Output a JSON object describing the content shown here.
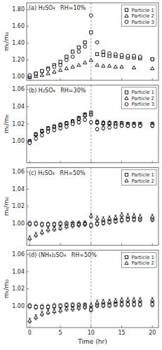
{
  "chart_data": [
    {
      "type": "scatter",
      "title": "(a) H₂SO₄   RH=10%",
      "ylabel": "mₜ/m₀",
      "xlim": [
        -0.5,
        21
      ],
      "xticks": [
        0,
        5,
        10,
        15,
        20
      ],
      "ylim": [
        0.96,
        1.88
      ],
      "yticks": [
        {
          "value": 1.0,
          "label": "1.00"
        },
        {
          "value": 1.2,
          "label": "1.20"
        },
        {
          "value": 1.4,
          "label": "1.40"
        },
        {
          "value": 1.6,
          "label": "1.60"
        },
        {
          "value": 1.8,
          "label": "1.80"
        }
      ],
      "tick_labels": "y",
      "grid": false,
      "legend": "upper right",
      "vline_x": 10.0,
      "series": [
        {
          "name": "Particle 1",
          "marker": "square",
          "color": "black",
          "x": [
            0.0,
            1.0,
            2.0,
            3.0,
            4.0,
            5.0,
            6.0,
            7.0,
            8.0,
            9.0,
            10.0,
            11.0,
            12.0,
            13.0,
            14.0,
            15.0,
            16.0,
            17.0,
            18.0,
            20.0
          ],
          "values": [
            1.0,
            1.04,
            1.07,
            1.1,
            1.14,
            1.18,
            1.24,
            1.3,
            1.35,
            1.41,
            1.53,
            1.27,
            1.26,
            1.25,
            1.25,
            1.24,
            1.23,
            1.23,
            1.22,
            1.21
          ]
        },
        {
          "name": "Particle 2",
          "marker": "triangle",
          "color": "black",
          "x": [
            0.0,
            1.0,
            2.0,
            3.0,
            4.0,
            5.0,
            6.0,
            7.0,
            8.0,
            9.0,
            10.0,
            11.0,
            12.0,
            13.0,
            14.0,
            15.0,
            17.0,
            20.0
          ],
          "values": [
            1.0,
            1.01,
            1.02,
            1.04,
            1.06,
            1.08,
            1.1,
            1.12,
            1.14,
            1.17,
            1.2,
            1.14,
            1.13,
            1.13,
            1.12,
            1.12,
            1.11,
            1.1
          ]
        },
        {
          "name": "Particle 3",
          "marker": "circle",
          "color": "black",
          "x": [
            0.0,
            1.0,
            2.0,
            3.0,
            4.0,
            5.0,
            6.0,
            7.0,
            8.0,
            9.0,
            10.0,
            11.0,
            12.0,
            13.0,
            14.0,
            15.0,
            16.0,
            17.0,
            18.0,
            20.0
          ],
          "values": [
            1.02,
            1.04,
            1.07,
            1.09,
            1.12,
            1.14,
            1.2,
            1.24,
            1.3,
            1.36,
            1.73,
            1.41,
            1.3,
            1.28,
            1.27,
            1.26,
            1.25,
            1.25,
            1.24,
            1.21
          ]
        }
      ]
    },
    {
      "type": "scatter",
      "title": "(b) H₂SO₄   RH=30%",
      "ylabel": "mₜ/m₀",
      "xlim": [
        -0.5,
        21
      ],
      "xticks": [
        0,
        5,
        10,
        15,
        20
      ],
      "ylim": [
        0.975,
        1.065
      ],
      "yticks": [
        {
          "value": 1.0,
          "label": "1.00"
        },
        1.02,
        1.04,
        1.06
      ],
      "tick_labels": "y",
      "grid": false,
      "legend": "upper right",
      "vline_x": 10.0,
      "series": [
        {
          "name": "Particle 1",
          "marker": "square",
          "color": "black",
          "x": [
            0.0,
            1.0,
            2.0,
            3.0,
            4.0,
            5.0,
            6.0,
            7.0,
            8.0,
            9.0,
            10.0,
            11.0,
            12.0,
            13.0,
            14.0,
            15.0,
            16.0,
            17.0,
            18.0,
            20.0
          ],
          "values": [
            1.0,
            1.008,
            1.012,
            1.015,
            1.017,
            1.019,
            1.021,
            1.023,
            1.027,
            1.031,
            1.033,
            1.022,
            1.021,
            1.021,
            1.021,
            1.021,
            1.02,
            1.02,
            1.02,
            1.02
          ],
          "yerr": [
            0.002,
            0.002,
            0.002,
            0.002,
            0.002,
            0.002,
            0.002,
            0.002,
            0.002,
            0.002,
            0.002,
            0.002,
            0.002,
            0.002,
            0.002,
            0.002,
            0.002,
            0.002,
            0.002,
            0.002
          ]
        },
        {
          "name": "Particle 2",
          "marker": "triangle",
          "color": "black",
          "x": [
            0.0,
            1.0,
            2.0,
            3.0,
            4.0,
            5.0,
            6.0,
            7.0,
            8.0,
            9.0,
            10.0,
            11.0,
            12.0,
            13.0,
            14.0,
            15.0,
            16.0,
            17.0,
            18.0,
            20.0
          ],
          "values": [
            1.0,
            1.008,
            1.012,
            1.015,
            1.017,
            1.019,
            1.021,
            1.023,
            1.026,
            1.03,
            1.031,
            1.022,
            1.021,
            1.021,
            1.02,
            1.02,
            1.019,
            1.019,
            1.019,
            1.019
          ],
          "yerr": [
            0.002,
            0.002,
            0.002,
            0.002,
            0.002,
            0.002,
            0.002,
            0.002,
            0.002,
            0.002,
            0.002,
            0.003,
            0.003,
            0.003,
            0.003,
            0.003,
            0.003,
            0.003,
            0.003,
            0.003
          ]
        },
        {
          "name": "Particle 3",
          "marker": "circle",
          "color": "black",
          "x": [
            0.0,
            1.0,
            2.0,
            3.0,
            4.0,
            5.0,
            6.0,
            7.0,
            8.0,
            9.0,
            10.0,
            11.0,
            12.0,
            13.0,
            14.0,
            15.0,
            16.0,
            17.0,
            18.0,
            20.0
          ],
          "values": [
            0.998,
            1.003,
            1.007,
            1.011,
            1.013,
            1.015,
            1.017,
            1.02,
            1.022,
            1.025,
            1.022,
            1.014,
            1.015,
            1.016,
            1.017,
            1.018,
            1.018,
            1.018,
            1.018,
            1.018
          ],
          "yerr": [
            0.002,
            0.002,
            0.002,
            0.002,
            0.002,
            0.002,
            0.002,
            0.002,
            0.002,
            0.002,
            0.002,
            0.002,
            0.002,
            0.002,
            0.002,
            0.002,
            0.002,
            0.002,
            0.002,
            0.002
          ]
        }
      ]
    },
    {
      "type": "scatter",
      "title": "(c) H₂SO₄   RH=50%",
      "ylabel": "mₜ/m₀",
      "xlim": [
        -0.5,
        21
      ],
      "xticks": [
        0,
        5,
        10,
        15,
        20
      ],
      "ylim": [
        0.975,
        1.065
      ],
      "yticks": [
        {
          "value": 1.0,
          "label": "1.00"
        },
        1.02,
        1.04,
        1.06
      ],
      "tick_labels": "y",
      "grid": false,
      "legend": "upper right",
      "vline_x": 10.0,
      "series": [
        {
          "name": "Particle 1",
          "marker": "square",
          "color": "black",
          "x": [
            0.0,
            1.0,
            2.0,
            3.0,
            4.0,
            5.0,
            6.0,
            7.0,
            8.0,
            9.0,
            10.0,
            11.0,
            12.0,
            13.0,
            14.0,
            15.0,
            16.0,
            17.0,
            18.0,
            20.0
          ],
          "values": [
            1.0,
            1.0,
            0.999,
            0.999,
            0.999,
            1.0,
            1.0,
            1.0,
            1.0,
            1.0,
            0.998,
            1.0,
            1.001,
            1.002,
            1.003,
            1.004,
            1.005,
            1.005,
            1.005,
            1.005
          ],
          "yerr": [
            0.003,
            0.003,
            0.003,
            0.003,
            0.003,
            0.003,
            0.003,
            0.003,
            0.003,
            0.003,
            0.003,
            0.003,
            0.003,
            0.003,
            0.003,
            0.003,
            0.003,
            0.003,
            0.003,
            0.003
          ]
        },
        {
          "name": "Particle 2",
          "marker": "triangle",
          "color": "black",
          "x": [
            0.0,
            1.0,
            2.0,
            3.0,
            4.0,
            5.0,
            6.0,
            7.0,
            8.0,
            9.0,
            10.0,
            11.0,
            12.0,
            13.0,
            14.0,
            15.0,
            16.0,
            17.0,
            18.0,
            20.0
          ],
          "values": [
            0.983,
            0.987,
            0.99,
            0.993,
            0.994,
            0.995,
            0.997,
            0.998,
            0.999,
            1.0,
            1.009,
            1.006,
            1.005,
            1.006,
            1.007,
            1.01,
            1.009,
            1.009,
            1.008,
            1.008
          ],
          "yerr": [
            0.003,
            0.003,
            0.003,
            0.003,
            0.003,
            0.003,
            0.003,
            0.003,
            0.003,
            0.003,
            0.003,
            0.003,
            0.003,
            0.003,
            0.003,
            0.003,
            0.003,
            0.003,
            0.003,
            0.003
          ]
        }
      ]
    },
    {
      "type": "scatter",
      "title": "(d) (NH₄)₂SO₄   RH=50%",
      "ylabel": "mₜ/m₀",
      "xlabel": "Time (hr)",
      "xlim": [
        -0.5,
        21
      ],
      "xticks": [
        0,
        5,
        10,
        15,
        20
      ],
      "ylim": [
        0.975,
        1.065
      ],
      "yticks": [
        {
          "value": 1.0,
          "label": "1.00"
        },
        1.02,
        1.04,
        1.06
      ],
      "tick_labels": true,
      "grid": false,
      "legend": "upper right",
      "vline_x": 10.0,
      "series": [
        {
          "name": "Particle 1",
          "marker": "square",
          "color": "black",
          "x": [
            0.0,
            1.0,
            2.0,
            3.0,
            4.0,
            5.0,
            6.0,
            7.0,
            8.0,
            9.0,
            10.0,
            11.0,
            12.0,
            13.0,
            14.0,
            15.0,
            16.0,
            17.0,
            18.0,
            20.0
          ],
          "values": [
            1.0,
            0.999,
            0.999,
            0.999,
            1.0,
            1.0,
            1.001,
            1.001,
            1.001,
            1.001,
            0.996,
            1.001,
            1.001,
            1.001,
            1.002,
            1.002,
            1.002,
            1.002,
            1.002,
            1.002
          ],
          "yerr": [
            0.003,
            0.003,
            0.003,
            0.003,
            0.003,
            0.003,
            0.003,
            0.003,
            0.003,
            0.003,
            0.003,
            0.003,
            0.003,
            0.003,
            0.003,
            0.003,
            0.003,
            0.003,
            0.003,
            0.003
          ]
        },
        {
          "name": "Particle 2",
          "marker": "triangle",
          "color": "black",
          "x": [
            0.0,
            1.0,
            2.0,
            3.0,
            4.0,
            5.0,
            6.0,
            7.0,
            8.0,
            9.0,
            10.0,
            11.0,
            12.0,
            13.0,
            14.0,
            15.0,
            16.0,
            17.0,
            18.0,
            20.0
          ],
          "values": [
            0.983,
            0.987,
            0.991,
            0.993,
            0.994,
            0.995,
            0.997,
            0.997,
            0.998,
            0.999,
            1.001,
            1.004,
            1.005,
            1.005,
            1.006,
            1.007,
            1.007,
            1.007,
            1.007,
            1.007
          ],
          "yerr": [
            0.003,
            0.003,
            0.003,
            0.003,
            0.003,
            0.003,
            0.003,
            0.003,
            0.003,
            0.003,
            0.003,
            0.003,
            0.003,
            0.003,
            0.003,
            0.003,
            0.003,
            0.003,
            0.003,
            0.003
          ]
        }
      ]
    }
  ]
}
